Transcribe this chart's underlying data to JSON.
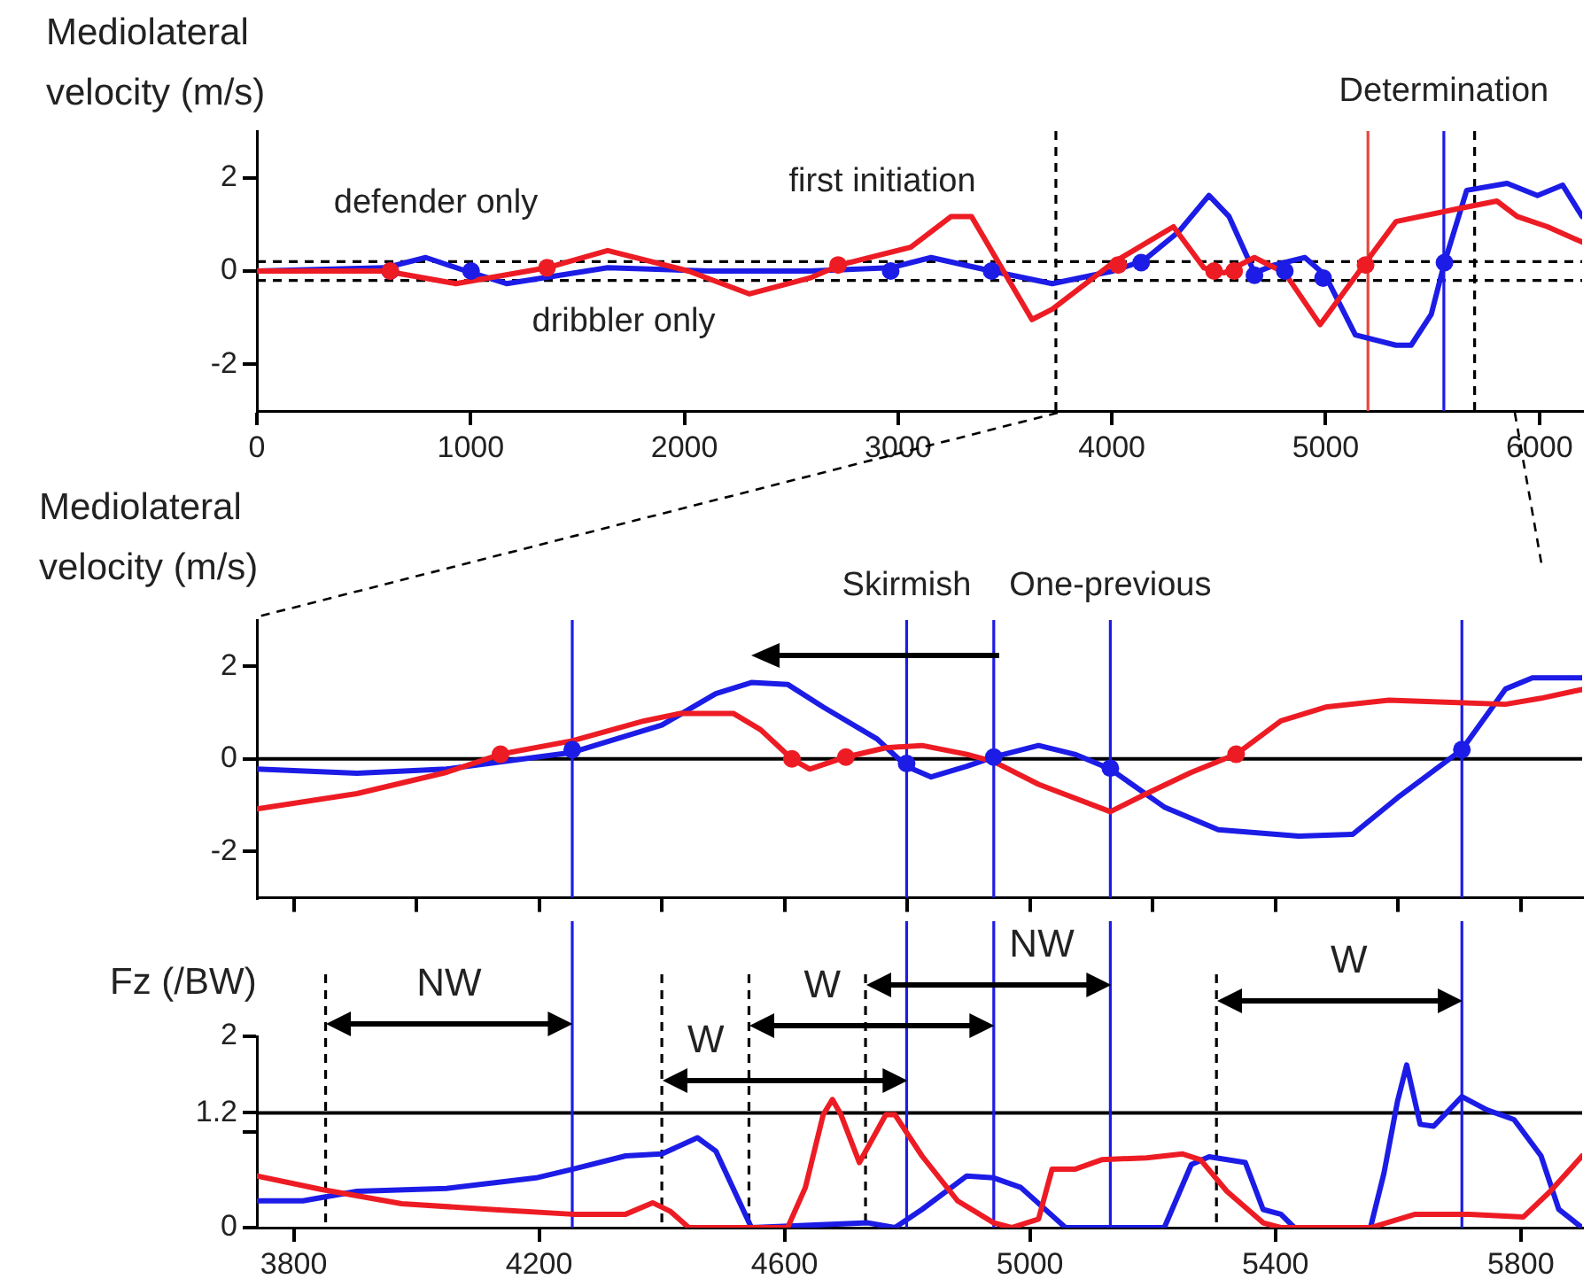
{
  "chart_data": [
    {
      "type": "line",
      "ylabel": "Mediolateral velocity (m/s)",
      "xlim": [
        0,
        6200
      ],
      "xticks": [
        0,
        1000,
        2000,
        3000,
        4000,
        5000,
        6000
      ],
      "ylim": [
        -3,
        3
      ],
      "yticks": [
        -2,
        0,
        2
      ],
      "grid": false,
      "legend": false,
      "series": [
        {
          "color": "#ed1c24",
          "marker": "none",
          "x": [
            0,
            600,
            931,
            1357,
            1641,
            2019,
            2303,
            2586,
            2728,
            3059,
            3248,
            3343,
            3626,
            3721,
            4005,
            4288,
            4430,
            4525,
            4667,
            4809,
            4974,
            5187,
            5329,
            5612,
            5801,
            5896,
            6038,
            6200
          ],
          "values": [
            0,
            0,
            -0.27,
            0.07,
            0.44,
            0,
            -0.49,
            -0.15,
            0.13,
            0.51,
            1.17,
            1.17,
            -1.04,
            -0.82,
            0.18,
            0.95,
            0.07,
            -0.04,
            0.29,
            -0.04,
            -1.15,
            0.18,
            1.06,
            1.33,
            1.5,
            1.17,
            0.95,
            0.62
          ]
        },
        {
          "color": "#1c1ce6",
          "marker": "none",
          "x": [
            0,
            600,
            790,
            979,
            1168,
            1641,
            2114,
            2586,
            2965,
            3154,
            3437,
            3721,
            4005,
            4147,
            4312,
            4454,
            4548,
            4667,
            4761,
            4903,
            4998,
            5139,
            5329,
            5400,
            5494,
            5556,
            5660,
            5849,
            5991,
            6109,
            6200
          ],
          "values": [
            0,
            0.07,
            0.29,
            0,
            -0.27,
            0.07,
            0,
            0,
            0.07,
            0.29,
            0,
            -0.27,
            0,
            0.22,
            0.84,
            1.62,
            1.17,
            -0.04,
            0.13,
            0.29,
            -0.09,
            -1.37,
            -1.59,
            -1.59,
            -0.93,
            0.18,
            1.73,
            1.88,
            1.62,
            1.84,
            1.17
          ]
        },
        {
          "type": "scatter",
          "color": "#ed1c24",
          "marker": "circle",
          "x": [
            624,
            1357,
            2719,
            4029,
            4478,
            4572,
            5187
          ],
          "values": [
            0,
            0.07,
            0.13,
            0.13,
            0,
            0,
            0.13
          ]
        },
        {
          "type": "scatter",
          "color": "#1c1ce6",
          "marker": "circle",
          "x": [
            624,
            1002,
            2965,
            3437,
            4137,
            4667,
            4809,
            4988,
            5556
          ],
          "values": [
            0,
            0,
            0,
            0,
            0.18,
            -0.09,
            0,
            -0.15,
            0.18
          ]
        }
      ],
      "ref_lines": [
        {
          "axis": "y",
          "value": 0.2,
          "line_style": "dashed",
          "color": "#000000"
        },
        {
          "axis": "y",
          "value": -0.2,
          "line_style": "dashed",
          "color": "#000000"
        },
        {
          "axis": "x",
          "value": 3738,
          "line_style": "dashed",
          "color": "#000000"
        },
        {
          "axis": "x",
          "value": 5697,
          "line_style": "dashed",
          "color": "#000000"
        },
        {
          "axis": "x",
          "value": 5198,
          "line_style": "solid",
          "color": "#e8473f"
        },
        {
          "axis": "x",
          "value": 5553,
          "line_style": "solid",
          "color": "#1c1ce6",
          "label": "Determination"
        }
      ],
      "annotations": [
        "defender only",
        "dribbler only",
        "first initiation"
      ]
    },
    {
      "type": "line",
      "ylabel": "Mediolateral velocity (m/s)",
      "xlim": [
        3740,
        5900
      ],
      "xticks": [
        3800,
        4000,
        4200,
        4400,
        4600,
        4800,
        5000,
        5200,
        5400,
        5600,
        5800
      ],
      "ylim": [
        -3,
        3
      ],
      "yticks": [
        -2,
        0,
        2
      ],
      "grid": false,
      "legend": false,
      "tick_labels": "y",
      "series": [
        {
          "color": "#ed1c24",
          "marker": "none",
          "x": [
            3740,
            3903,
            4049,
            4137,
            4254,
            4371,
            4429,
            4517,
            4561,
            4612,
            4641,
            4700,
            4765,
            4824,
            4897,
            4941,
            5014,
            5131,
            5190,
            5263,
            5336,
            5409,
            5482,
            5585,
            5687,
            5775,
            5833,
            5900
          ],
          "values": [
            -1.08,
            -0.75,
            -0.29,
            0.1,
            0.39,
            0.82,
            0.98,
            0.98,
            0.63,
            0,
            -0.22,
            0.04,
            0.24,
            0.29,
            0.1,
            -0.06,
            -0.55,
            -1.14,
            -0.75,
            -0.29,
            0.1,
            0.82,
            1.12,
            1.27,
            1.22,
            1.18,
            1.31,
            1.5
          ]
        },
        {
          "color": "#1c1ce6",
          "marker": "none",
          "x": [
            3740,
            3903,
            4049,
            4254,
            4400,
            4488,
            4546,
            4605,
            4663,
            4751,
            4799,
            4839,
            4897,
            4941,
            5014,
            5073,
            5131,
            5219,
            5307,
            5438,
            5526,
            5599,
            5704,
            5775,
            5819,
            5900
          ],
          "values": [
            -0.22,
            -0.31,
            -0.22,
            0.14,
            0.73,
            1.41,
            1.65,
            1.61,
            1.12,
            0.43,
            -0.16,
            -0.39,
            -0.16,
            0.04,
            0.29,
            0.1,
            -0.22,
            -1.04,
            -1.53,
            -1.67,
            -1.63,
            -0.84,
            0.2,
            1.51,
            1.75,
            1.75
          ]
        },
        {
          "type": "scatter",
          "color": "#ed1c24",
          "marker": "circle",
          "x": [
            4137,
            4612,
            4700,
            5336
          ],
          "values": [
            0.1,
            0,
            0.04,
            0.1
          ]
        },
        {
          "type": "scatter",
          "color": "#1c1ce6",
          "marker": "circle",
          "x": [
            4254,
            4799,
            4941,
            5131,
            5704
          ],
          "values": [
            0.2,
            -0.1,
            0.04,
            -0.2,
            0.2
          ]
        }
      ],
      "ref_lines": [
        {
          "axis": "y",
          "value": 0,
          "line_style": "solid",
          "color": "#000000"
        },
        {
          "axis": "x",
          "value": 4254,
          "line_style": "solid",
          "color": "#1c1ce6"
        },
        {
          "axis": "x",
          "value": 4799,
          "line_style": "solid",
          "color": "#1c1ce6",
          "label": "Skirmish"
        },
        {
          "axis": "x",
          "value": 4941,
          "line_style": "solid",
          "color": "#1c1ce6"
        },
        {
          "axis": "x",
          "value": 5131,
          "line_style": "solid",
          "color": "#1c1ce6",
          "label": "One-previous"
        },
        {
          "axis": "x",
          "value": 5704,
          "line_style": "solid",
          "color": "#1c1ce6"
        }
      ]
    },
    {
      "type": "line",
      "ylabel": "Fz (/BW)",
      "xlim": [
        3740,
        5900
      ],
      "xticks": [
        3800,
        4200,
        4600,
        5000,
        5400,
        5800
      ],
      "ylim": [
        0,
        2
      ],
      "yticks": [
        0,
        {
          "value": 1,
          "label": null
        },
        1.2,
        2
      ],
      "grid": false,
      "legend": false,
      "series": [
        {
          "color": "#ed1c24",
          "marker": "none",
          "x": [
            3740,
            3844,
            3976,
            4122,
            4254,
            4341,
            4385,
            4414,
            4444,
            4605,
            4634,
            4663,
            4678,
            4692,
            4722,
            4765,
            4780,
            4824,
            4882,
            4941,
            4970,
            5014,
            5036,
            5073,
            5117,
            5190,
            5249,
            5278,
            5321,
            5380,
            5409,
            5555,
            5628,
            5716,
            5804,
            5848,
            5900
          ],
          "values": [
            0.54,
            0.4,
            0.25,
            0.19,
            0.14,
            0.14,
            0.26,
            0.17,
            0,
            0,
            0.42,
            1.18,
            1.34,
            1.18,
            0.68,
            1.18,
            1.18,
            0.75,
            0.28,
            0.05,
            0,
            0.09,
            0.61,
            0.61,
            0.71,
            0.73,
            0.77,
            0.71,
            0.38,
            0.05,
            0,
            0,
            0.14,
            0.14,
            0.11,
            0.38,
            0.75
          ]
        },
        {
          "color": "#1c1ce6",
          "marker": "none",
          "x": [
            3740,
            3815,
            3903,
            4049,
            4195,
            4254,
            4341,
            4400,
            4458,
            4488,
            4546,
            4736,
            4780,
            4824,
            4897,
            4941,
            4985,
            5058,
            5219,
            5263,
            5292,
            5351,
            5380,
            5409,
            5431,
            5555,
            5577,
            5599,
            5614,
            5636,
            5658,
            5704,
            5745,
            5789,
            5833,
            5862,
            5900
          ],
          "values": [
            0.28,
            0.28,
            0.38,
            0.41,
            0.52,
            0.61,
            0.75,
            0.77,
            0.94,
            0.8,
            0,
            0.05,
            0,
            0.19,
            0.54,
            0.52,
            0.42,
            0,
            0,
            0.66,
            0.74,
            0.68,
            0.19,
            0.14,
            0,
            0,
            0.57,
            1.32,
            1.7,
            1.08,
            1.06,
            1.37,
            1.23,
            1.13,
            0.75,
            0.19,
            0
          ]
        }
      ],
      "ref_lines": [
        {
          "axis": "y",
          "value": 1.2,
          "line_style": "solid",
          "color": "#000000"
        },
        {
          "axis": "x",
          "value": 4254,
          "line_style": "solid",
          "color": "#1c1ce6"
        },
        {
          "axis": "x",
          "value": 4799,
          "line_style": "solid",
          "color": "#1c1ce6"
        },
        {
          "axis": "x",
          "value": 4941,
          "line_style": "solid",
          "color": "#1c1ce6"
        },
        {
          "axis": "x",
          "value": 5131,
          "line_style": "solid",
          "color": "#1c1ce6"
        },
        {
          "axis": "x",
          "value": 5704,
          "line_style": "solid",
          "color": "#1c1ce6"
        },
        {
          "axis": "x",
          "value": 3852,
          "line_style": "dashed",
          "color": "#000000"
        },
        {
          "axis": "x",
          "value": 4400,
          "line_style": "dashed",
          "color": "#000000"
        },
        {
          "axis": "x",
          "value": 4542,
          "line_style": "dashed",
          "color": "#000000"
        },
        {
          "axis": "x",
          "value": 4732,
          "line_style": "dashed",
          "color": "#000000"
        },
        {
          "axis": "x",
          "value": 5304,
          "line_style": "dashed",
          "color": "#000000"
        }
      ],
      "annotations": [
        "NW",
        "W",
        "W",
        "NW",
        "W"
      ]
    }
  ]
}
